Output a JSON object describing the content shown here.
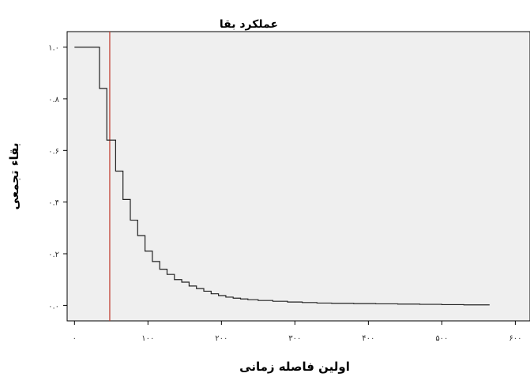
{
  "chart_data": {
    "type": "line",
    "title": "عملکرد بقا",
    "xlabel": "اولین فاصله زمانی",
    "ylabel": "بقاء تجمعی",
    "xlim": [
      -10,
      620
    ],
    "ylim": [
      -0.06,
      1.06
    ],
    "xticks": [
      0,
      100,
      200,
      300,
      400,
      500,
      600
    ],
    "xtick_labels": [
      "۰",
      "۱۰۰",
      "۲۰۰",
      "۳۰۰",
      "۴۰۰",
      "۵۰۰",
      "۶۰۰"
    ],
    "yticks": [
      0.0,
      0.2,
      0.4,
      0.6,
      0.8,
      1.0
    ],
    "ytick_labels": [
      "۰.۰",
      "۰.۲",
      "۰.۴",
      "۰.۶",
      "۰.۸",
      "۱.۰"
    ],
    "grid": false,
    "reference_line": {
      "x": 48,
      "color": "#c0392b"
    },
    "series": [
      {
        "step": true,
        "color": "#222222",
        "x": [
          0,
          22,
          34,
          44,
          56,
          66,
          76,
          86,
          96,
          106,
          116,
          126,
          136,
          146,
          156,
          166,
          176,
          186,
          196,
          206,
          216,
          226,
          236,
          250,
          270,
          290,
          310,
          330,
          350,
          380,
          410,
          440,
          470,
          500,
          530,
          565
        ],
        "y": [
          1.0,
          1.0,
          0.84,
          0.64,
          0.52,
          0.41,
          0.33,
          0.27,
          0.21,
          0.17,
          0.14,
          0.12,
          0.1,
          0.09,
          0.075,
          0.065,
          0.055,
          0.045,
          0.038,
          0.032,
          0.028,
          0.025,
          0.022,
          0.019,
          0.016,
          0.013,
          0.011,
          0.009,
          0.008,
          0.007,
          0.006,
          0.005,
          0.004,
          0.003,
          0.002,
          0.002
        ]
      }
    ]
  }
}
